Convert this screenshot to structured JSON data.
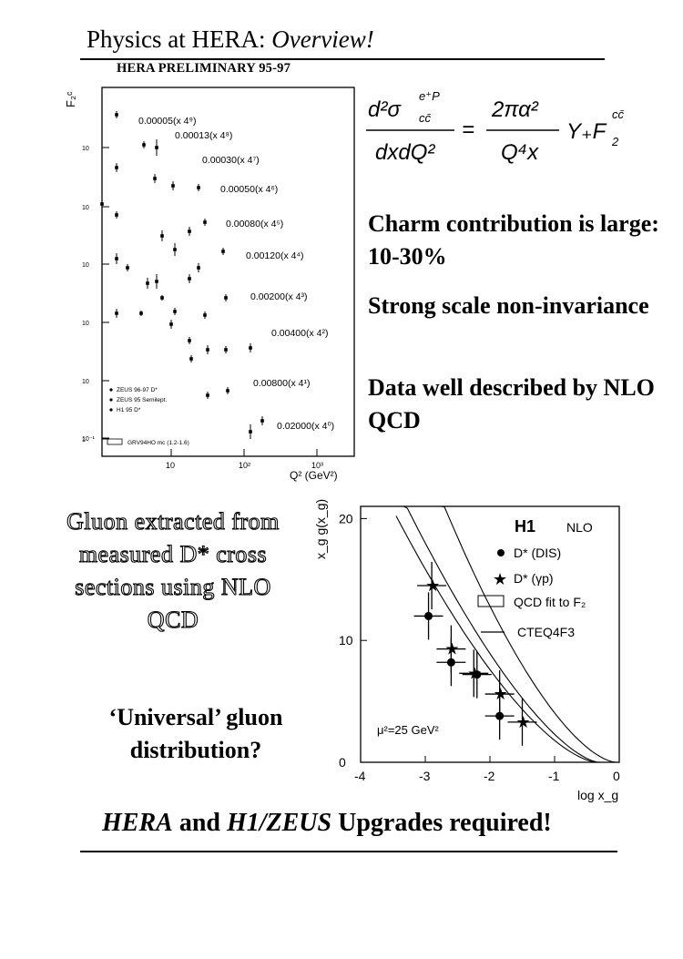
{
  "slide": {
    "title_plain": "Physics at HERA: ",
    "title_italic": "Overview!",
    "left_panel_header": "HERA PRELIMINARY 95-97"
  },
  "formula": {
    "lhs_num": "d²σ",
    "lhs_num_sup": "e⁺P",
    "lhs_num_sub": "cc̄",
    "lhs_den": "dxdQ²",
    "rhs_num": "2πα²",
    "rhs_den": "Q⁴x",
    "rhs_tail": "Y₊F",
    "rhs_tail_sub": "2",
    "rhs_tail_sup": "cc̄"
  },
  "bullets": [
    "Charm contribution is large: 10-30%",
    "Strong scale non-invariance",
    "Data well described by NLO QCD"
  ],
  "gluon_text": "Gluon extracted from measured D* cross sections using NLO QCD",
  "universal_text": "‘Universal’ gluon distribution?",
  "bottom": {
    "italic1": "HERA",
    "plain1": " and ",
    "italic2": "H1/ZEUS",
    "plain2": " Upgrades required!"
  },
  "chart_data": [
    {
      "type": "scatter",
      "ylabel": "F₂ᶜ",
      "xlabel": "Q² (GeV²)",
      "x_scale": "log",
      "x_tick_labels": [
        "10",
        "10²",
        "10³"
      ],
      "y_tick_labels": [
        "10",
        "10",
        "10",
        "10",
        "10",
        "1",
        "10⁻¹"
      ],
      "annotations": [
        "0.00005(x 4⁹)",
        "0.00013(x 4⁸)",
        "0.00030(x 4⁷)",
        "0.00050(x 4⁶)",
        "0.00080(x 4⁵)",
        "0.00120(x 4⁴)",
        "0.00200(x 4³)",
        "0.00400(x 4²)",
        "0.00800(x 4¹)",
        "0.02000(x 4⁰)"
      ],
      "legend": [
        "ZEUS 96-97 D*",
        "ZEUS 95 Semilept.",
        "H1 95 D*",
        "GRV94HO mc (1.2-1.6)"
      ],
      "legend_position": "bottom-left"
    },
    {
      "type": "scatter",
      "xlabel": "log x_g",
      "ylabel": "x_g g(x_g)",
      "xlim": [
        -4,
        0
      ],
      "ylim": [
        0,
        21
      ],
      "x_ticks": [
        -4,
        -3,
        -2,
        -1,
        0
      ],
      "y_ticks": [
        0,
        10,
        20
      ],
      "legend_title": "H1",
      "legend_subtitle": "NLO",
      "legend": [
        "D* (DIS)",
        "D* (γp)",
        "QCD fit to F₂",
        "CTEQ4F3"
      ],
      "legend_position": "top-right",
      "annotation": "μ²=25 GeV²",
      "series": [
        {
          "name": "D* (DIS)",
          "marker": "circle",
          "points": [
            [
              -2.95,
              12.0
            ],
            [
              -2.6,
              8.2
            ],
            [
              -2.2,
              7.2
            ],
            [
              -1.85,
              3.8
            ]
          ]
        },
        {
          "name": "D* (γp)",
          "marker": "star",
          "points": [
            [
              -2.9,
              14.5
            ],
            [
              -2.6,
              9.3
            ],
            [
              -2.25,
              7.3
            ],
            [
              -1.85,
              5.6
            ],
            [
              -1.5,
              3.3
            ]
          ]
        }
      ]
    }
  ]
}
